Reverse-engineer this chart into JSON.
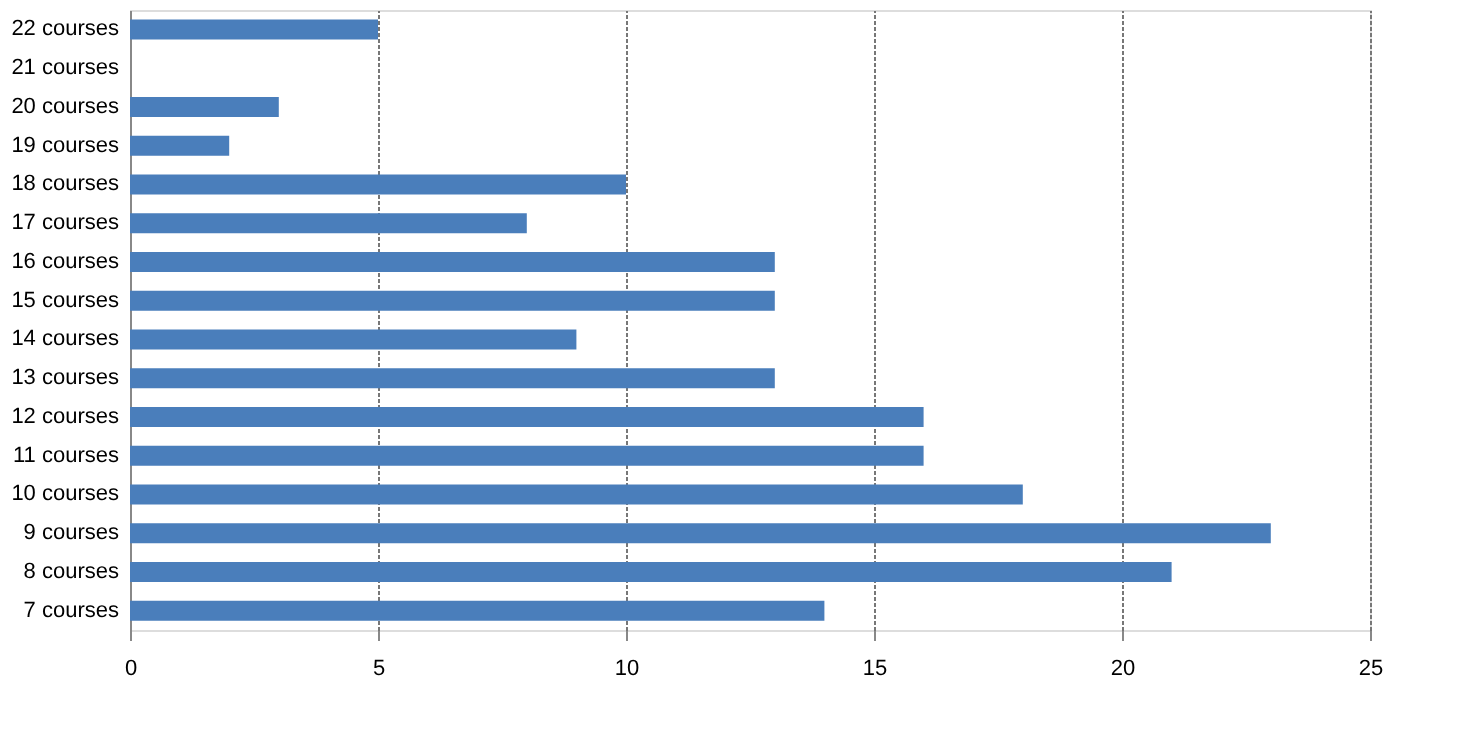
{
  "chart_data": {
    "type": "bar",
    "orientation": "horizontal",
    "categories": [
      "22 courses",
      "21 courses",
      "20 courses",
      "19 courses",
      "18 courses",
      "17 courses",
      "16 courses",
      "15 courses",
      "14 courses",
      "13 courses",
      "12 courses",
      "11 courses",
      "10 courses",
      "9 courses",
      "8 courses",
      "7 courses"
    ],
    "values": [
      5,
      0,
      3,
      2,
      10,
      8,
      13,
      13,
      9,
      13,
      16,
      16,
      18,
      23,
      21,
      14
    ],
    "color": "#4a7ebb",
    "xlim": [
      0,
      25
    ],
    "xticks": [
      0,
      5,
      10,
      15,
      20,
      25
    ],
    "grid": "x"
  }
}
